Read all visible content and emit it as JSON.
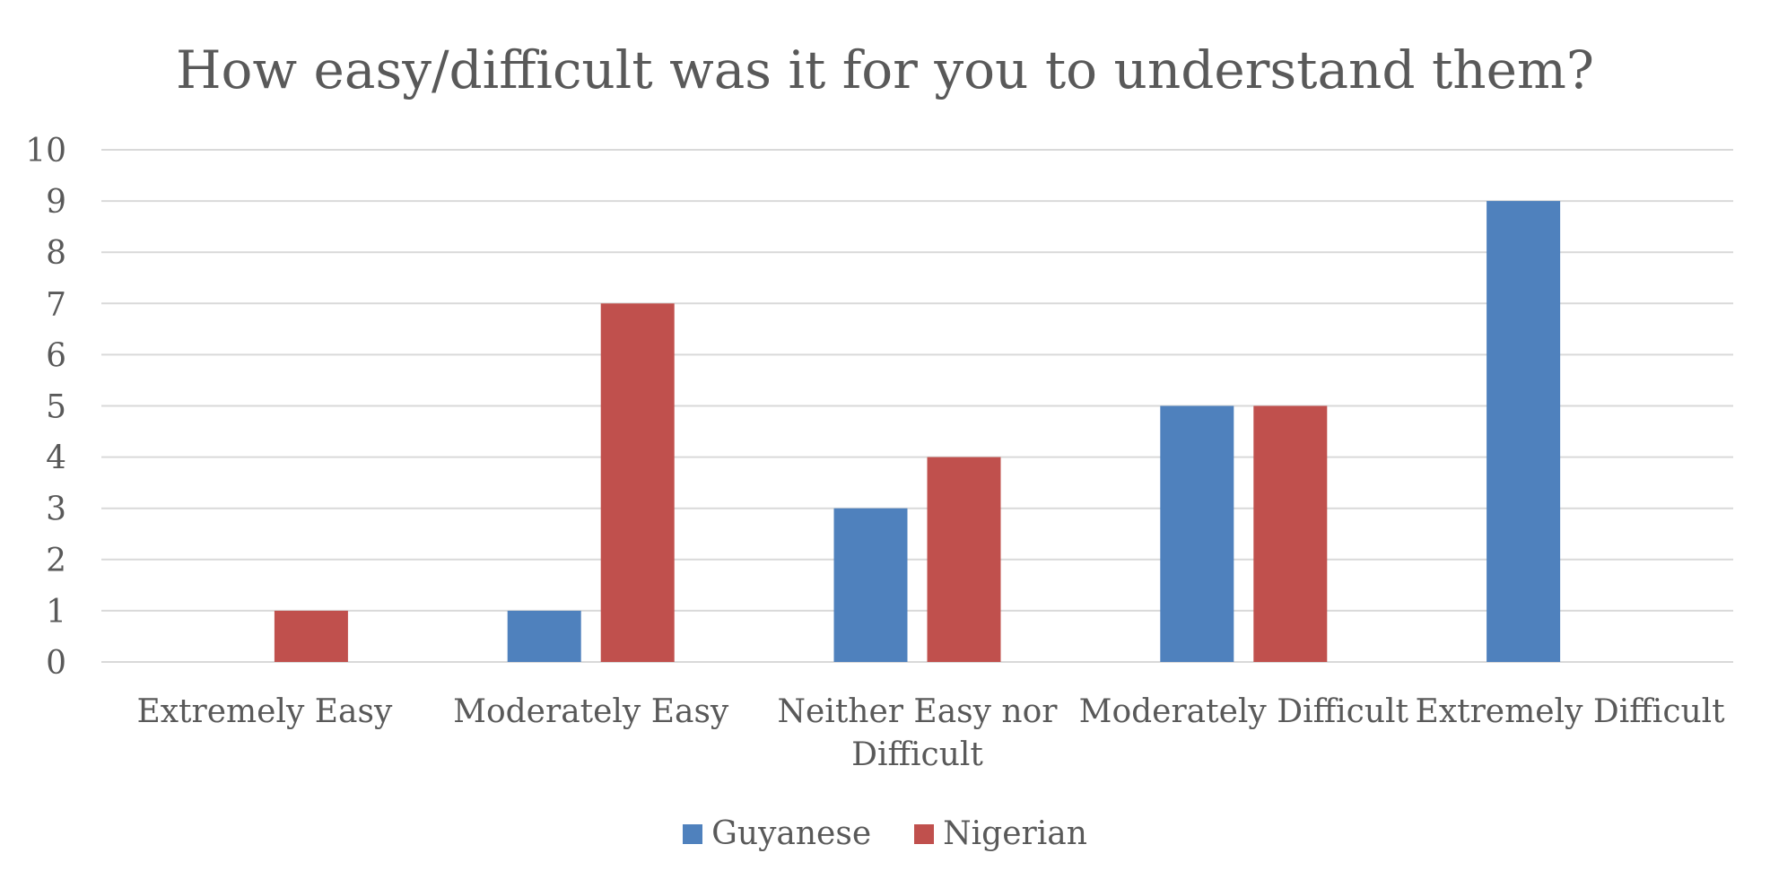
{
  "chart_data": {
    "type": "bar",
    "title": "How easy/difficult was it for you to understand them?",
    "categories": [
      "Extremely Easy",
      "Moderately Easy",
      "Neither Easy nor Difficult",
      "Moderately Difficult",
      "Extremely Difficult"
    ],
    "category_lines": [
      [
        "Extremely Easy"
      ],
      [
        "Moderately Easy"
      ],
      [
        "Neither Easy nor",
        "Difficult"
      ],
      [
        "Moderately Difficult"
      ],
      [
        "Extremely Difficult"
      ]
    ],
    "series": [
      {
        "name": "Guyanese",
        "color": "#4F81BD",
        "values": [
          0,
          1,
          3,
          5,
          9
        ]
      },
      {
        "name": "Nigerian",
        "color": "#C0504D",
        "values": [
          1,
          7,
          4,
          5,
          0
        ]
      }
    ],
    "ylim": [
      0,
      10
    ],
    "yticks": [
      "0",
      "1",
      "2",
      "3",
      "4",
      "5",
      "6",
      "7",
      "8",
      "9",
      "10"
    ],
    "grid": true,
    "legend_position": "bottom",
    "gridline_color": "#D9D9D9"
  }
}
